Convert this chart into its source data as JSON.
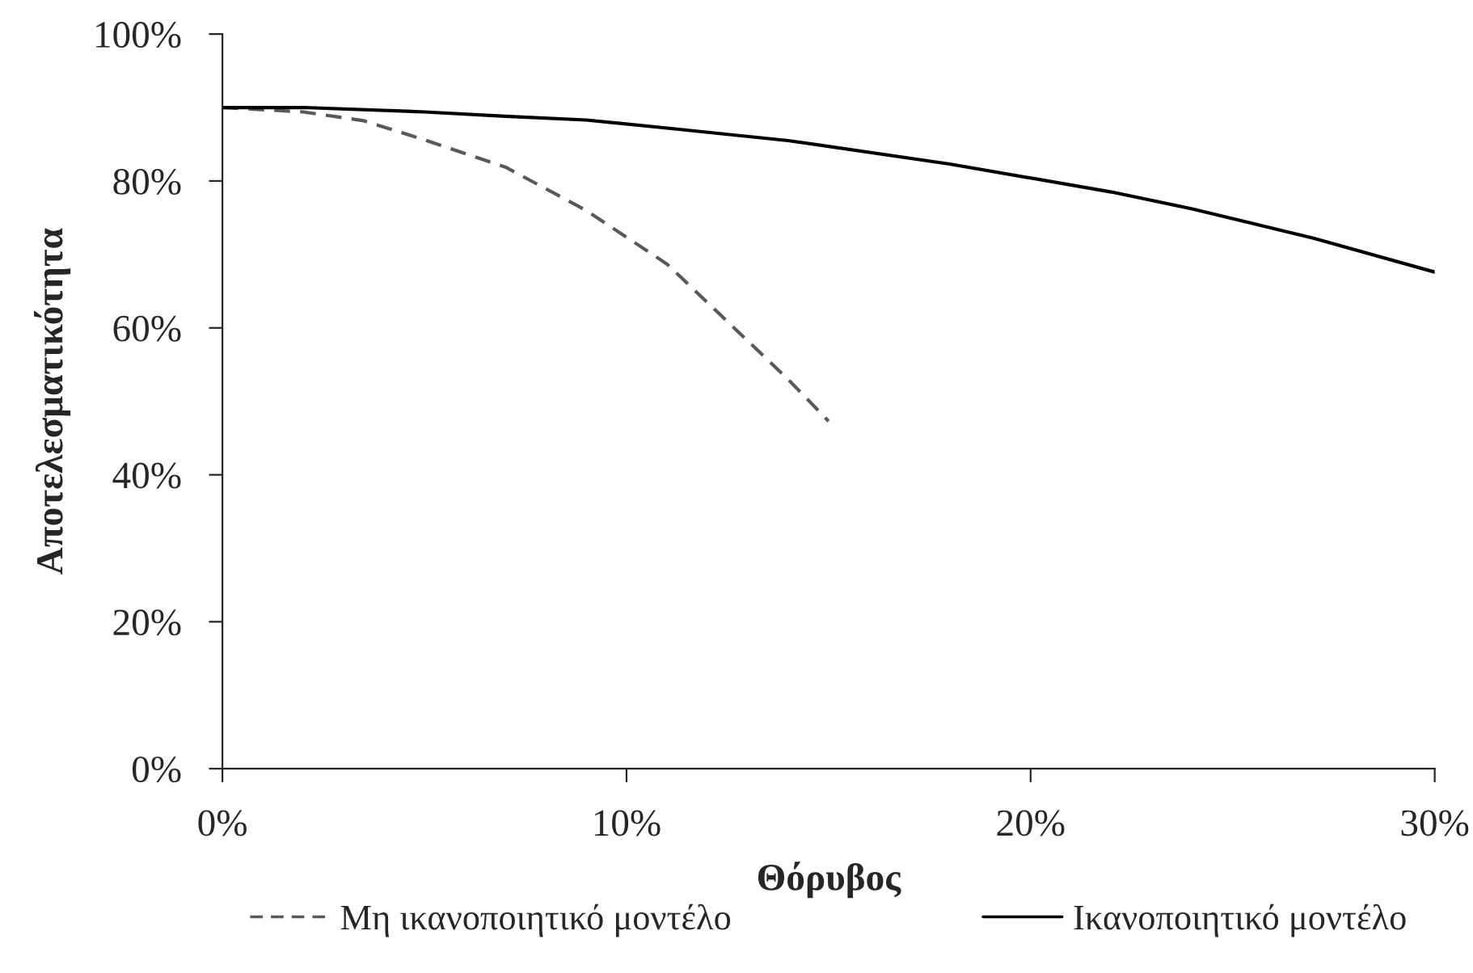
{
  "chart_data": {
    "type": "line",
    "xlabel": "Θόρυβος",
    "ylabel": "Αποτελεσματικότητα",
    "xlim": [
      0,
      30
    ],
    "ylim": [
      0,
      100
    ],
    "xticks": [
      {
        "value": 0,
        "label": "0%"
      },
      {
        "value": 10,
        "label": "10%"
      },
      {
        "value": 20,
        "label": "20%"
      },
      {
        "value": 30,
        "label": "30%"
      }
    ],
    "yticks": [
      {
        "value": 0,
        "label": "0%"
      },
      {
        "value": 20,
        "label": "20%"
      },
      {
        "value": 40,
        "label": "40%"
      },
      {
        "value": 60,
        "label": "60%"
      },
      {
        "value": 80,
        "label": "80%"
      },
      {
        "value": 100,
        "label": "100%"
      }
    ],
    "grid": false,
    "legend": "bottom",
    "marker": "none",
    "series": [
      {
        "name": "Μη ικανοποιητικό μοντέλο",
        "color": "#595959",
        "line_style": "dashed",
        "x": [
          0,
          2,
          3.5,
          5,
          7,
          9,
          11,
          14,
          15
        ],
        "values": [
          90,
          89.4,
          88.2,
          85.6,
          81.9,
          76,
          68.7,
          53,
          47.3
        ]
      },
      {
        "name": "Ικανοποιητικό μοντέλο",
        "color": "#000000",
        "line_style": "solid",
        "x": [
          0,
          2,
          5,
          7,
          9,
          11,
          14,
          18,
          22,
          24,
          27,
          30
        ],
        "values": [
          90,
          90,
          89.4,
          88.8,
          88.3,
          87.2,
          85.5,
          82.3,
          78.5,
          76.2,
          72.2,
          67.6
        ]
      }
    ]
  }
}
